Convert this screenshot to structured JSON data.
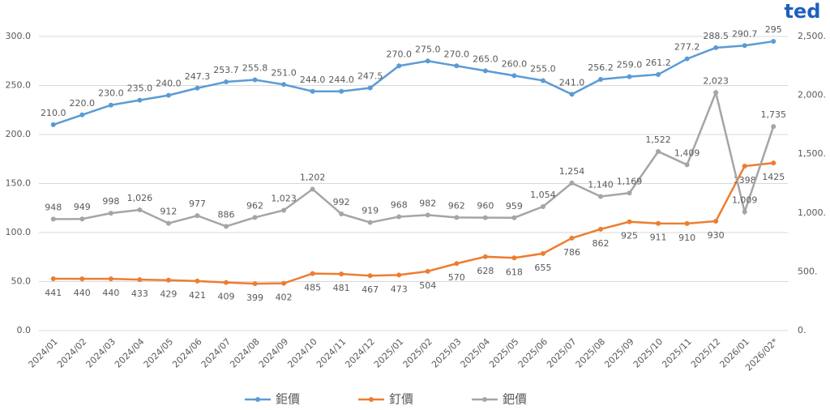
{
  "chart_data": {
    "type": "line",
    "watermark": "ted",
    "categories": [
      "2024/01",
      "2024/02",
      "2024/03",
      "2024/04",
      "2024/05",
      "2024/06",
      "2024/07",
      "2024/08",
      "2024/09",
      "2024/10",
      "2024/11",
      "2024/12",
      "2025/01",
      "2025/02",
      "2025/03",
      "2025/04",
      "2025/05",
      "2025/06",
      "2025/07",
      "2025/08",
      "2025/09",
      "2025/10",
      "2025/11",
      "2025/12",
      "2026/01",
      "2026/02*"
    ],
    "ylim": [
      0,
      300
    ],
    "yticks": [
      {
        "value": 0,
        "label": "0.0"
      },
      {
        "value": 50,
        "label": "50.0"
      },
      {
        "value": 100,
        "label": "100.0"
      },
      {
        "value": 150,
        "label": "150.0"
      },
      {
        "value": 200,
        "label": "200.0"
      },
      {
        "value": 250,
        "label": "250.0"
      },
      {
        "value": 300,
        "label": "300.0"
      }
    ],
    "y2lim": [
      0,
      2500
    ],
    "y2ticks": [
      {
        "value": 0,
        "label": "0."
      },
      {
        "value": 500,
        "label": "500."
      },
      {
        "value": 1000,
        "label": "1,000."
      },
      {
        "value": 1500,
        "label": "1,500."
      },
      {
        "value": 2000,
        "label": "2,000."
      },
      {
        "value": 2500,
        "label": "2,500."
      }
    ],
    "grid": true,
    "legend": "bottom",
    "series": [
      {
        "name": "鉅價",
        "color": "#5b9bd5",
        "label_pos": "above",
        "values": [
          210,
          220,
          230,
          235,
          240,
          247.3,
          253.7,
          255.8,
          251,
          244,
          244,
          247.5,
          270,
          275,
          270,
          265,
          260,
          255,
          241,
          256.2,
          259,
          261.2,
          277.2,
          288.5,
          290.7,
          295
        ],
        "value_labels": [
          "210.0",
          "220.0",
          "230.0",
          "235.0",
          "240.0",
          "247.3",
          "253.7",
          "255.8",
          "251.0",
          "244.0",
          "244.0",
          "247.5",
          "270.0",
          "275.0",
          "270.0",
          "265.0",
          "260.0",
          "255.0",
          "241.0",
          "256.2",
          "259.0",
          "261.2",
          "277.2",
          "288.5",
          "290.7",
          "295"
        ]
      },
      {
        "name": "釘價",
        "color": "#ed7d31",
        "axis": "y2",
        "label_pos": "below",
        "values": [
          441,
          440,
          440,
          433,
          429,
          421,
          409,
          399,
          402,
          485,
          481,
          467,
          473,
          504,
          570,
          628,
          618,
          655,
          786,
          862,
          925,
          911,
          910,
          930,
          1398,
          1425
        ]
      },
      {
        "name": "鈀價",
        "color": "#a5a5a5",
        "axis": "y2",
        "label_pos": "above",
        "values": [
          948,
          949,
          998,
          1026,
          912,
          977,
          886,
          962,
          1023,
          1202,
          992,
          919,
          968,
          982,
          962,
          960,
          959,
          1054,
          1254,
          1140,
          1169,
          1522,
          1409,
          2023,
          1009,
          1735
        ],
        "value_labels": [
          "948",
          "949",
          "998",
          "1,026",
          "912",
          "977",
          "886",
          "962",
          "1,023",
          "1,202",
          "992",
          "919",
          "968",
          "982",
          "962",
          "960",
          "959",
          "1,054",
          "1,254",
          "1,140",
          "1,169",
          "1,522",
          "1,409",
          "2,023",
          "1,009",
          "1,735"
        ]
      }
    ]
  }
}
